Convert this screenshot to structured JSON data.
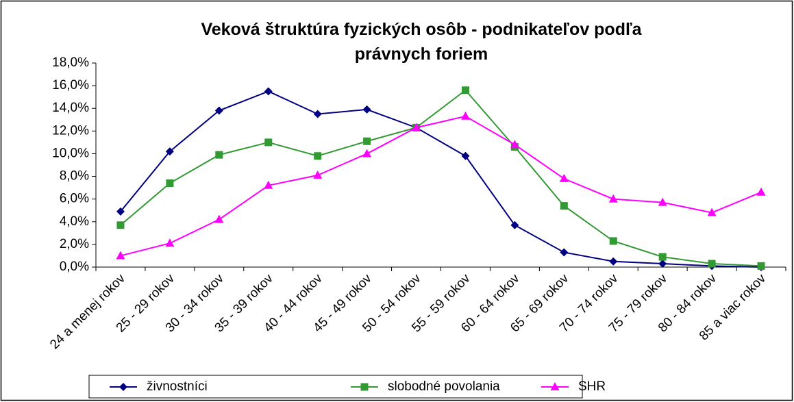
{
  "chart_data": {
    "type": "line",
    "title": "Veková štruktúra fyzických osôb - podnikateľov podľa právnych foriem",
    "categories": [
      "24 a menej rokov",
      "25 - 29 rokov",
      "30 - 34 rokov",
      "35 - 39 rokov",
      "40 - 44 rokov",
      "45 - 49 rokov",
      "50 - 54 rokov",
      "55 - 59 rokov",
      "60 - 64 rokov",
      "65 - 69 rokov",
      "70 - 74 rokov",
      "75 - 79 rokov",
      "80 - 84 rokov",
      "85 a viac rokov"
    ],
    "series": [
      {
        "name": "živnostníci",
        "color": "#000080",
        "marker": "diamond",
        "values": [
          4.9,
          10.2,
          13.8,
          15.5,
          13.5,
          13.9,
          12.3,
          9.8,
          3.7,
          1.3,
          0.5,
          0.3,
          0.1,
          0.0
        ]
      },
      {
        "name": "slobodné povolania",
        "color": "#339933",
        "marker": "square",
        "values": [
          3.7,
          7.4,
          9.9,
          11.0,
          9.8,
          11.1,
          12.3,
          15.6,
          10.6,
          5.4,
          2.3,
          0.9,
          0.3,
          0.1
        ]
      },
      {
        "name": "SHR",
        "color": "#ff00ff",
        "marker": "triangle",
        "values": [
          1.0,
          2.1,
          4.2,
          7.2,
          8.1,
          10.0,
          12.3,
          13.3,
          10.8,
          7.8,
          6.0,
          5.7,
          4.8,
          6.6
        ]
      }
    ],
    "ylim": [
      0,
      18
    ],
    "yticks": [
      {
        "value": 0,
        "label": "0,0%"
      },
      {
        "value": 2,
        "label": "2,0%"
      },
      {
        "value": 4,
        "label": "4,0%"
      },
      {
        "value": 6,
        "label": "6,0%"
      },
      {
        "value": 8,
        "label": "8,0%"
      },
      {
        "value": 10,
        "label": "10,0%"
      },
      {
        "value": 12,
        "label": "12,0%"
      },
      {
        "value": 14,
        "label": "14,0%"
      },
      {
        "value": 16,
        "label": "16,0%"
      },
      {
        "value": 18,
        "label": "18,0%"
      }
    ],
    "legend": "bottom"
  }
}
